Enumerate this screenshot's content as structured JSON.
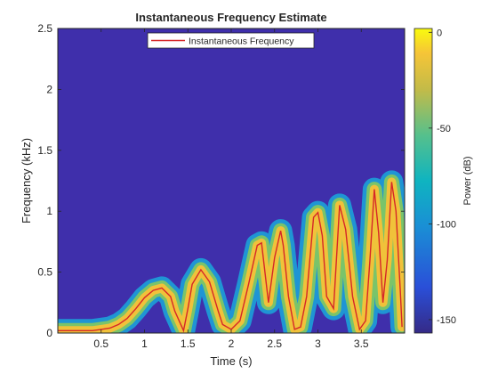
{
  "chart_data": {
    "type": "heatmap",
    "title": "Instantaneous Frequency Estimate",
    "xlabel": "Time (s)",
    "ylabel": "Frequency (kHz)",
    "xlim": [
      0,
      4
    ],
    "ylim": [
      0,
      2.5
    ],
    "x_ticks": [
      0.5,
      1,
      1.5,
      2,
      2.5,
      3,
      3.5
    ],
    "x_tick_labels": [
      "0.5",
      "1",
      "1.5",
      "2",
      "2.5",
      "3",
      "3.5"
    ],
    "y_ticks": [
      0,
      0.5,
      1,
      1.5,
      2,
      2.5
    ],
    "y_tick_labels": [
      "0",
      "0.5",
      "1",
      "1.5",
      "2",
      "2.5"
    ],
    "colorbar": {
      "label": "Power (dB)",
      "range": [
        -157,
        2
      ],
      "ticks": [
        0,
        -50,
        -100,
        -150
      ],
      "tick_labels": [
        "0",
        "-50",
        "-100",
        "-150"
      ],
      "colormap": "parula"
    },
    "legend": {
      "position": "top-center",
      "entries": [
        "Instantaneous Frequency"
      ]
    },
    "series": [
      {
        "name": "Instantaneous Frequency",
        "color": "#d62728",
        "x": [
          0,
          0.1,
          0.2,
          0.3,
          0.4,
          0.5,
          0.6,
          0.7,
          0.8,
          0.9,
          1.0,
          1.1,
          1.2,
          1.3,
          1.35,
          1.45,
          1.5,
          1.55,
          1.65,
          1.75,
          1.85,
          1.9,
          2.0,
          2.1,
          2.2,
          2.3,
          2.35,
          2.43,
          2.5,
          2.57,
          2.6,
          2.66,
          2.73,
          2.8,
          2.87,
          2.95,
          3.0,
          3.05,
          3.1,
          3.18,
          3.25,
          3.32,
          3.4,
          3.48,
          3.55,
          3.6,
          3.65,
          3.7,
          3.75,
          3.8,
          3.85,
          3.9,
          3.95,
          3.97
        ],
        "y": [
          0.02,
          0.02,
          0.02,
          0.02,
          0.02,
          0.03,
          0.04,
          0.07,
          0.12,
          0.2,
          0.29,
          0.35,
          0.37,
          0.3,
          0.18,
          0.02,
          0.2,
          0.4,
          0.52,
          0.42,
          0.18,
          0.07,
          0.03,
          0.1,
          0.4,
          0.72,
          0.74,
          0.25,
          0.62,
          0.84,
          0.72,
          0.3,
          0.03,
          0.05,
          0.3,
          0.95,
          0.99,
          0.8,
          0.3,
          0.2,
          1.05,
          0.85,
          0.3,
          0.03,
          0.1,
          0.6,
          1.18,
          0.82,
          0.25,
          0.6,
          1.24,
          1.0,
          0.35,
          0.05
        ]
      }
    ]
  }
}
